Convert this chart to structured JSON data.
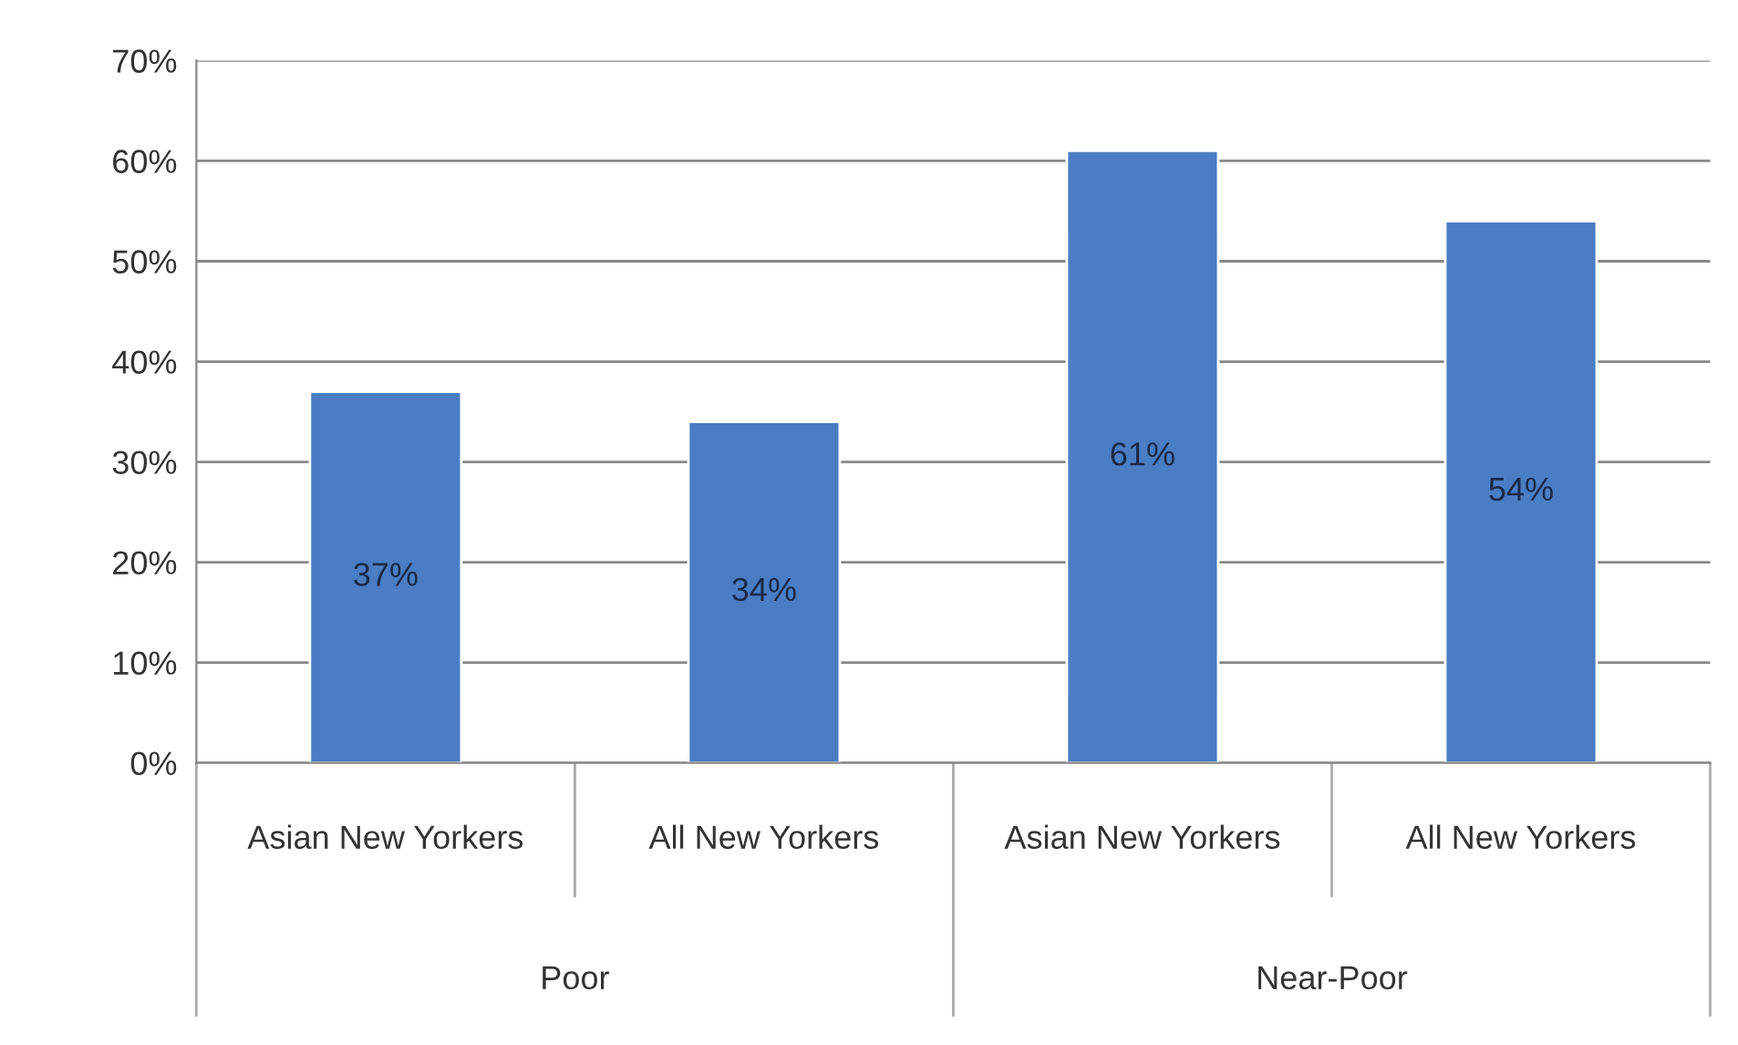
{
  "chart_data": {
    "type": "bar",
    "categories": [
      "Asian New Yorkers",
      "All New Yorkers",
      "Asian New Yorkers",
      "All New Yorkers"
    ],
    "values": [
      37,
      34,
      61,
      54
    ],
    "value_labels": [
      "37%",
      "34%",
      "61%",
      "54%"
    ],
    "color": "#4a7dc4",
    "ylim": [
      0,
      70
    ],
    "yticks": [
      {
        "value": 0,
        "label": "0%"
      },
      {
        "value": 10,
        "label": "10%"
      },
      {
        "value": 20,
        "label": "20%"
      },
      {
        "value": 30,
        "label": "30%"
      },
      {
        "value": 40,
        "label": "40%"
      },
      {
        "value": 50,
        "label": "50%"
      },
      {
        "value": 60,
        "label": "60%"
      },
      {
        "value": 70,
        "label": "70%"
      }
    ],
    "grid": "y",
    "annotations": [
      "Poor",
      "Near-Poor"
    ]
  }
}
